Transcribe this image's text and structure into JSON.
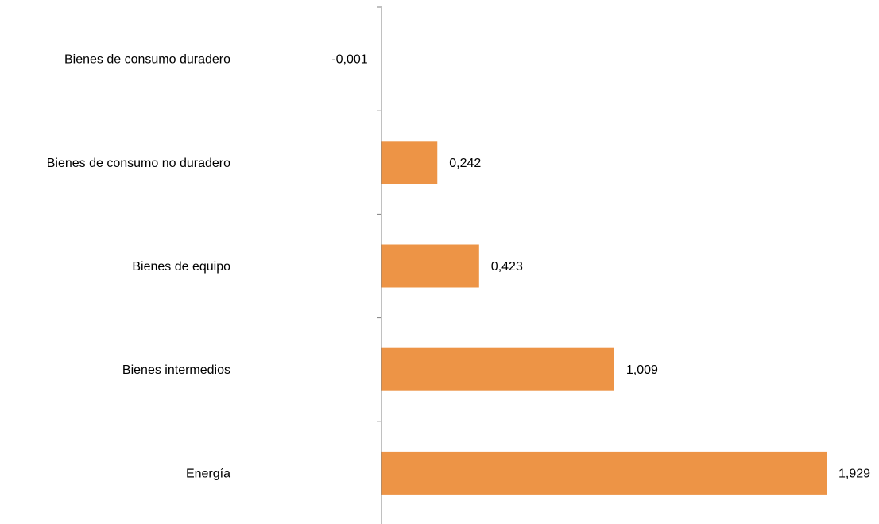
{
  "chart_data": {
    "type": "bar",
    "orientation": "horizontal",
    "categories": [
      "Bienes de consumo duradero",
      "Bienes de consumo no duradero",
      "Bienes de equipo",
      "Bienes intermedios",
      "Energía"
    ],
    "values": [
      -0.001,
      0.242,
      0.423,
      1.009,
      1.929
    ],
    "value_labels": [
      "-0,001",
      "0,242",
      "0,423",
      "1,009",
      "1,929"
    ],
    "title": "",
    "xlabel": "",
    "ylabel": "",
    "xlim": [
      0,
      1.929
    ],
    "grid": false,
    "legend": "none",
    "bar_color": "#ED9446",
    "axis_color": "#808080"
  }
}
